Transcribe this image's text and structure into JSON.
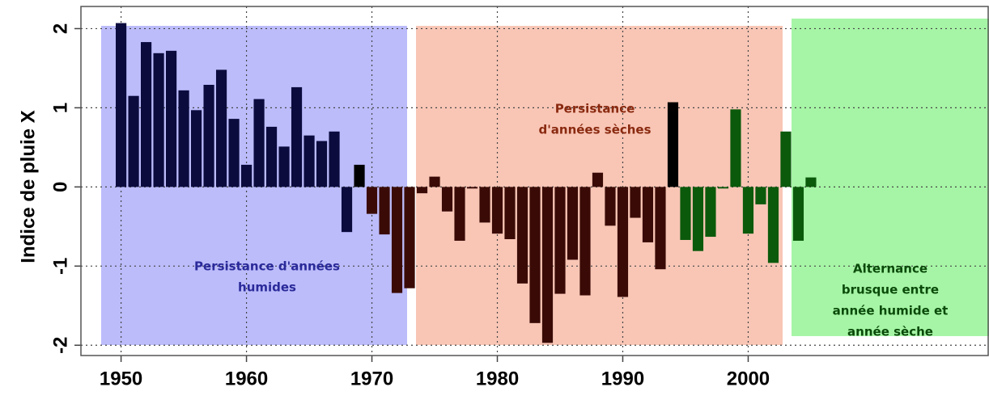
{
  "chart_data": {
    "type": "bar",
    "y_label": "Indice de pluie X",
    "xlim": [
      1946.8,
      2019.2
    ],
    "xticks": [
      1950,
      1960,
      1970,
      1980,
      1990,
      2000
    ],
    "ylim": [
      -2.13,
      2.28
    ],
    "yticks": [
      -2,
      -1,
      0,
      1,
      2
    ],
    "grid": true,
    "series": [
      {
        "color": "#0b0b3e",
        "x": [
          1950,
          1951,
          1952,
          1953,
          1954,
          1955,
          1956,
          1957,
          1958,
          1959,
          1960,
          1961,
          1962,
          1963,
          1964,
          1965,
          1966,
          1967,
          1968
        ],
        "values": [
          2.07,
          1.15,
          1.83,
          1.69,
          1.72,
          1.22,
          0.97,
          1.29,
          1.48,
          0.86,
          0.28,
          1.11,
          0.76,
          0.51,
          1.26,
          0.65,
          0.58,
          0.7,
          -0.57
        ]
      },
      {
        "color": "#000000",
        "x": [
          1969
        ],
        "values": [
          0.28
        ]
      },
      {
        "color": "#3a0b06",
        "x": [
          1970,
          1971,
          1972,
          1973,
          1974,
          1975,
          1976,
          1977,
          1978,
          1979,
          1980,
          1981,
          1982,
          1983,
          1984,
          1985,
          1986,
          1987,
          1988,
          1989,
          1990,
          1991,
          1992,
          1993
        ],
        "values": [
          -0.34,
          -0.6,
          -1.34,
          -1.28,
          -0.08,
          0.13,
          -0.31,
          -0.68,
          -0.02,
          -0.45,
          -0.59,
          -0.66,
          -1.22,
          -1.72,
          -1.97,
          -1.35,
          -0.92,
          -1.37,
          0.18,
          -0.49,
          -1.39,
          -0.39,
          -0.7,
          -1.04
        ]
      },
      {
        "color": "#000000",
        "x": [
          1994
        ],
        "values": [
          1.07
        ]
      },
      {
        "color": "#0b5a0b",
        "x": [
          1995,
          1996,
          1997,
          1998,
          1999,
          2000,
          2001,
          2002,
          2003,
          2004,
          2005
        ],
        "values": [
          -0.67,
          -0.81,
          -0.63,
          -0.02,
          0.98,
          -0.59,
          -0.22,
          -0.96,
          0.7,
          -0.68,
          0.12
        ]
      }
    ],
    "annotations": [
      {
        "lines": [
          "Persistance d'années",
          "humides"
        ],
        "color": "#2a2a9a"
      },
      {
        "lines": [
          "Persistance",
          "d'années sèches"
        ],
        "color": "#8a2a10"
      },
      {
        "lines": [
          "Alternance",
          "brusque entre",
          "année humide et",
          "année sèche"
        ],
        "color": "#0a4a0a"
      }
    ]
  }
}
